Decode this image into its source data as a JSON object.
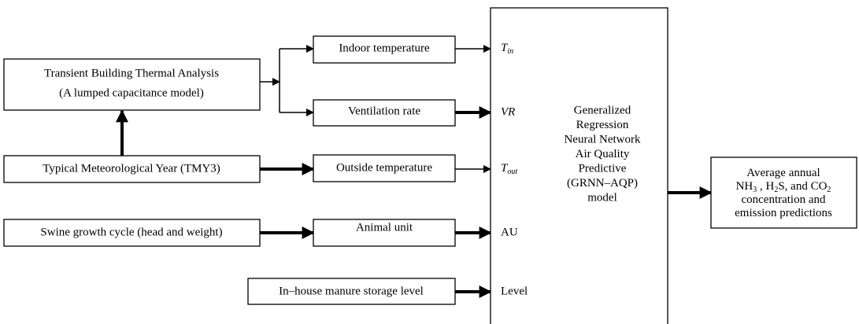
{
  "nodes": [
    {
      "lines": [
        "Transient Building Thermal Analysis",
        "(A lumped capacitance model)"
      ]
    },
    {
      "label": "Typical Meteorological Year (TMY3)"
    },
    {
      "label": "Swine growth cycle (head and weight)"
    },
    {
      "label": "In–house manure storage level"
    },
    {
      "label": "Indoor temperature"
    },
    {
      "label": "Ventilation rate"
    },
    {
      "label": "Outside temperature"
    },
    {
      "label": "Animal unit"
    },
    {
      "lines": [
        "Generalized",
        "Regression",
        "Neural Network",
        "Air Quality",
        "Predictive",
        "(GRNN–AQP)",
        "model"
      ]
    },
    {
      "lines": [
        [
          {
            "text": "Average annual"
          }
        ],
        [
          {
            "text": "NH"
          },
          {
            "sub": "3"
          },
          {
            "text": " , H"
          },
          {
            "sub": "2"
          },
          {
            "text": "S, and CO"
          },
          {
            "sub": "2"
          }
        ],
        [
          {
            "text": "concentration and"
          }
        ],
        [
          {
            "text": "emission predictions"
          }
        ]
      ]
    }
  ],
  "inputs": [
    {
      "main": "T",
      "sub": "in"
    },
    {
      "main": "VR"
    },
    {
      "main": "T",
      "sub": "out"
    },
    {
      "main": "AU"
    },
    {
      "main": "Level"
    }
  ]
}
